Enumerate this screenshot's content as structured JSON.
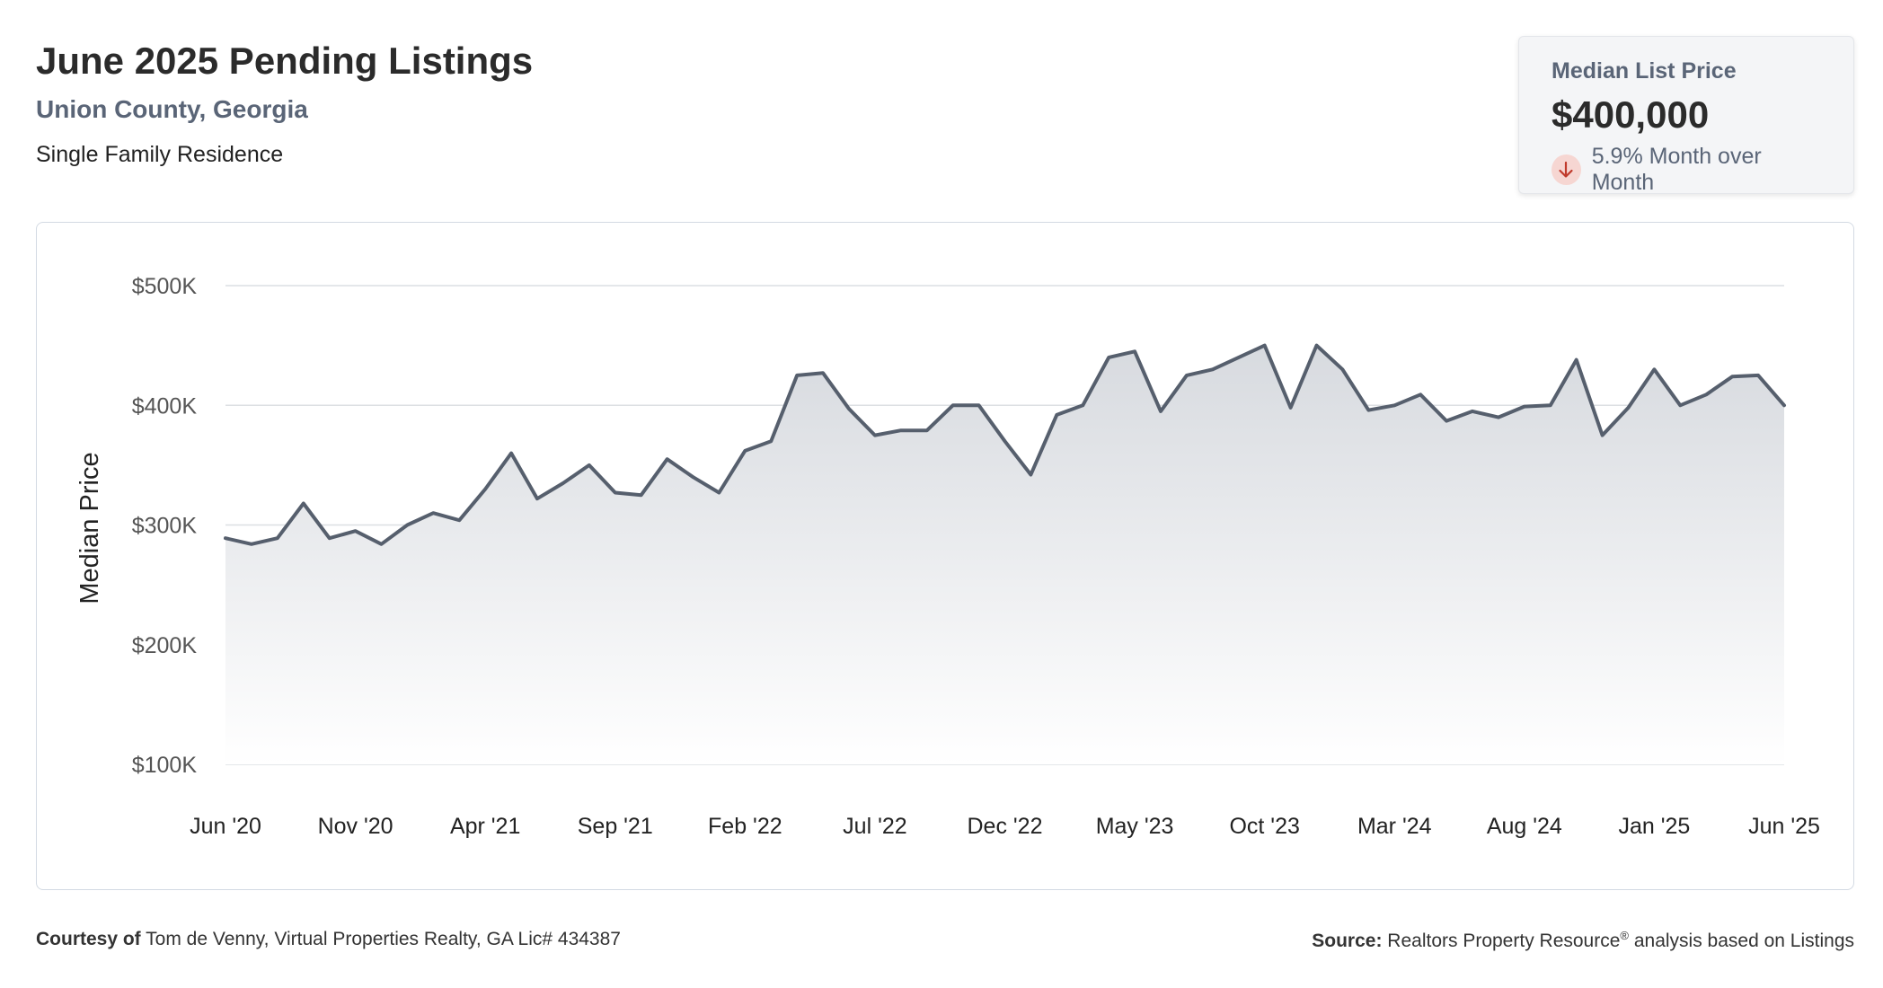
{
  "header": {
    "title": "June 2025 Pending Listings",
    "location": "Union County, Georgia",
    "property_type": "Single Family Residence"
  },
  "metric": {
    "label": "Median List Price",
    "value": "$400,000",
    "change": "5.9% Month over Month",
    "direction_icon": "arrow-down-icon",
    "icon_color": "#c0392b",
    "icon_bg": "#f6d6d2"
  },
  "chart_data": {
    "type": "area",
    "ylabel": "Median Price",
    "xlabel": "",
    "ylim": [
      100000,
      500000
    ],
    "y_ticks": [
      {
        "value": 500000,
        "label": "$500K"
      },
      {
        "value": 400000,
        "label": "$400K"
      },
      {
        "value": 300000,
        "label": "$300K"
      },
      {
        "value": 200000,
        "label": "$200K"
      },
      {
        "value": 100000,
        "label": "$100K"
      }
    ],
    "x_ticks": [
      {
        "index": 0,
        "label": "Jun '20"
      },
      {
        "index": 5,
        "label": "Nov '20"
      },
      {
        "index": 10,
        "label": "Apr '21"
      },
      {
        "index": 15,
        "label": "Sep '21"
      },
      {
        "index": 20,
        "label": "Feb '22"
      },
      {
        "index": 25,
        "label": "Jul '22"
      },
      {
        "index": 30,
        "label": "Dec '22"
      },
      {
        "index": 35,
        "label": "May '23"
      },
      {
        "index": 40,
        "label": "Oct '23"
      },
      {
        "index": 45,
        "label": "Mar '24"
      },
      {
        "index": 50,
        "label": "Aug '24"
      },
      {
        "index": 55,
        "label": "Jan '25"
      },
      {
        "index": 60,
        "label": "Jun '25"
      }
    ],
    "x": [
      "Jun '20",
      "Jul '20",
      "Aug '20",
      "Sep '20",
      "Oct '20",
      "Nov '20",
      "Dec '20",
      "Jan '21",
      "Feb '21",
      "Mar '21",
      "Apr '21",
      "May '21",
      "Jun '21",
      "Jul '21",
      "Aug '21",
      "Sep '21",
      "Oct '21",
      "Nov '21",
      "Dec '21",
      "Jan '22",
      "Feb '22",
      "Mar '22",
      "Apr '22",
      "May '22",
      "Jun '22",
      "Jul '22",
      "Aug '22",
      "Sep '22",
      "Oct '22",
      "Nov '22",
      "Dec '22",
      "Jan '23",
      "Feb '23",
      "Mar '23",
      "Apr '23",
      "May '23",
      "Jun '23",
      "Jul '23",
      "Aug '23",
      "Sep '23",
      "Oct '23",
      "Nov '23",
      "Dec '23",
      "Jan '24",
      "Feb '24",
      "Mar '24",
      "Apr '24",
      "May '24",
      "Jun '24",
      "Jul '24",
      "Aug '24",
      "Sep '24",
      "Oct '24",
      "Nov '24",
      "Dec '24",
      "Jan '25",
      "Feb '25",
      "Mar '25",
      "Apr '25",
      "May '25",
      "Jun '25"
    ],
    "series": [
      {
        "values": [
          289000,
          284000,
          289000,
          318000,
          289000,
          295000,
          284000,
          300000,
          310000,
          304000,
          330000,
          360000,
          322000,
          335000,
          350000,
          327000,
          325000,
          355000,
          340000,
          327000,
          362000,
          370000,
          425000,
          427000,
          397000,
          375000,
          379000,
          379000,
          400000,
          400000,
          370000,
          342000,
          392000,
          400000,
          440000,
          445000,
          395000,
          425000,
          430000,
          440000,
          450000,
          398000,
          450000,
          430000,
          396000,
          400000,
          409000,
          387000,
          395000,
          390000,
          399000,
          400000,
          438000,
          375000,
          398000,
          430000,
          400000,
          409000,
          424000,
          425000,
          400000
        ]
      }
    ],
    "line_color": "#565f6d",
    "fill_color_top": "#d7dadf",
    "fill_color_bottom": "#ffffff",
    "grid": true,
    "legend": "none"
  },
  "footer": {
    "courtesy_label": "Courtesy of",
    "courtesy_text": "Tom de Venny, Virtual Properties Realty, GA Lic# 434387",
    "source_label": "Source:",
    "source_text_1": "Realtors Property Resource",
    "source_sup": "®",
    "source_text_2": "analysis based on Listings"
  }
}
